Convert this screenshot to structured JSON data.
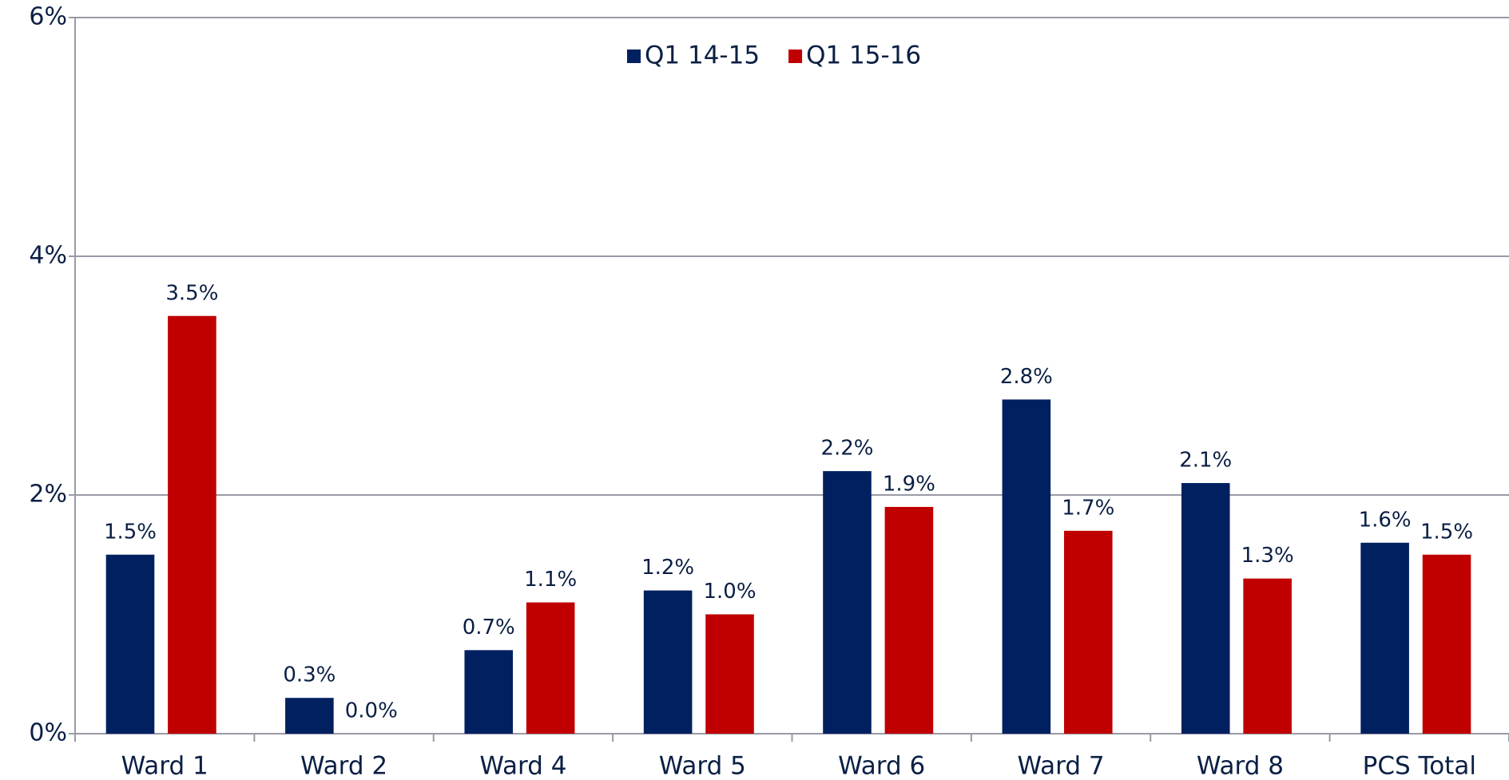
{
  "chart_data": {
    "type": "bar",
    "categories": [
      "Ward 1",
      "Ward 2",
      "Ward 4",
      "Ward 5",
      "Ward 6",
      "Ward 7",
      "Ward 8",
      "PCS Total"
    ],
    "series": [
      {
        "name": "Q1 14-15",
        "color": "#002060",
        "values": [
          1.5,
          0.3,
          0.7,
          1.2,
          2.2,
          2.8,
          2.1,
          1.6
        ],
        "value_labels": [
          "1.5%",
          "0.3%",
          "0.7%",
          "1.2%",
          "2.2%",
          "2.8%",
          "2.1%",
          "1.6%"
        ]
      },
      {
        "name": "Q1 15-16",
        "color": "#c00000",
        "values": [
          3.5,
          0.0,
          1.1,
          1.0,
          1.9,
          1.7,
          1.3,
          1.5
        ],
        "value_labels": [
          "3.5%",
          "0.0%",
          "1.1%",
          "1.0%",
          "1.9%",
          "1.7%",
          "1.3%",
          "1.5%"
        ]
      }
    ],
    "ylim": [
      0,
      6
    ],
    "yticks": [
      {
        "value": 0,
        "label": "0%"
      },
      {
        "value": 2,
        "label": "2%"
      },
      {
        "value": 4,
        "label": "4%"
      },
      {
        "value": 6,
        "label": "6%"
      }
    ],
    "grid": true,
    "legend": "top"
  }
}
